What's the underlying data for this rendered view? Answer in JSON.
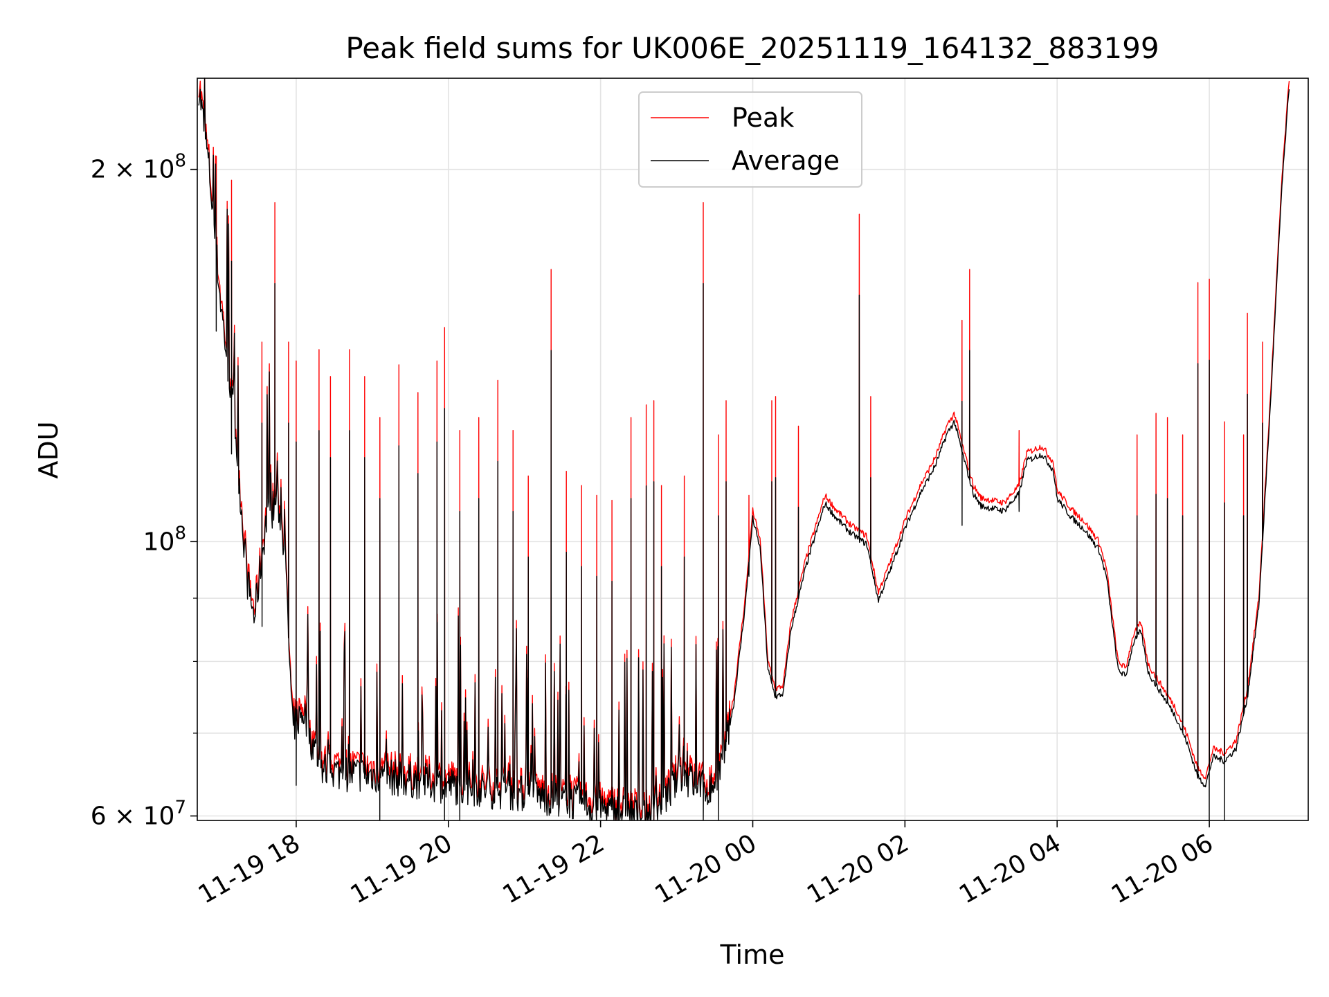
{
  "chart_data": {
    "type": "line",
    "title": "Peak field sums for UK006E_20251119_164132_883199",
    "xlabel": "Time",
    "ylabel": "ADU",
    "yscale": "log",
    "ylim": [
      59500000,
      237000000
    ],
    "xlim_hours": [
      16.7,
      31.3
    ],
    "grid": true,
    "legend_position": "upper center",
    "x_ticks": [
      {
        "hour": 18,
        "label": "11-19 18"
      },
      {
        "hour": 20,
        "label": "11-19 20"
      },
      {
        "hour": 22,
        "label": "11-19 22"
      },
      {
        "hour": 24,
        "label": "11-20 00"
      },
      {
        "hour": 26,
        "label": "11-20 02"
      },
      {
        "hour": 28,
        "label": "11-20 04"
      },
      {
        "hour": 30,
        "label": "11-20 06"
      }
    ],
    "y_major_ticks": [
      {
        "value": 60000000,
        "base": "6 × 10",
        "exp": "7"
      },
      {
        "value": 100000000,
        "base": "10",
        "exp": "8"
      },
      {
        "value": 200000000,
        "base": "2 × 10",
        "exp": "8"
      }
    ],
    "y_minor_ticks": [
      70000000,
      80000000,
      90000000
    ],
    "series": [
      {
        "name": "Peak",
        "color": "#ff0000",
        "baseline": [
          [
            16.72,
            237000000
          ],
          [
            16.85,
            205000000
          ],
          [
            17.0,
            160000000
          ],
          [
            17.2,
            125000000
          ],
          [
            17.35,
            95000000
          ],
          [
            17.45,
            88000000
          ],
          [
            17.6,
            105000000
          ],
          [
            17.75,
            110000000
          ],
          [
            17.85,
            100000000
          ],
          [
            17.95,
            72000000
          ],
          [
            18.1,
            74000000
          ],
          [
            18.2,
            70000000
          ],
          [
            18.35,
            66500000
          ],
          [
            18.6,
            66000000
          ],
          [
            19.0,
            65800000
          ],
          [
            19.5,
            65200000
          ],
          [
            20.0,
            64500000
          ],
          [
            20.5,
            64000000
          ],
          [
            21.0,
            63500000
          ],
          [
            21.5,
            62800000
          ],
          [
            22.0,
            61800000
          ],
          [
            22.4,
            61300000
          ],
          [
            22.6,
            60800000
          ],
          [
            22.9,
            63500000
          ],
          [
            23.05,
            66000000
          ],
          [
            23.25,
            64500000
          ],
          [
            23.45,
            64000000
          ],
          [
            23.6,
            67500000
          ],
          [
            23.75,
            75000000
          ],
          [
            23.9,
            90000000
          ],
          [
            24.0,
            106000000
          ],
          [
            24.1,
            100000000
          ],
          [
            24.2,
            80000000
          ],
          [
            24.3,
            76000000
          ],
          [
            24.4,
            76500000
          ],
          [
            24.5,
            86000000
          ],
          [
            24.7,
            97000000
          ],
          [
            24.95,
            109000000
          ],
          [
            25.1,
            106000000
          ],
          [
            25.3,
            103000000
          ],
          [
            25.5,
            101000000
          ],
          [
            25.65,
            91000000
          ],
          [
            25.8,
            96000000
          ],
          [
            26.0,
            104000000
          ],
          [
            26.2,
            111000000
          ],
          [
            26.4,
            117000000
          ],
          [
            26.55,
            124000000
          ],
          [
            26.65,
            127000000
          ],
          [
            26.75,
            120000000
          ],
          [
            26.9,
            111000000
          ],
          [
            27.0,
            108500000
          ],
          [
            27.3,
            107500000
          ],
          [
            27.5,
            111000000
          ],
          [
            27.6,
            118000000
          ],
          [
            27.8,
            119500000
          ],
          [
            27.95,
            116000000
          ],
          [
            28.0,
            110000000
          ],
          [
            28.2,
            106000000
          ],
          [
            28.35,
            104000000
          ],
          [
            28.55,
            100000000
          ],
          [
            28.65,
            95000000
          ],
          [
            28.8,
            80000000
          ],
          [
            28.9,
            79000000
          ],
          [
            29.0,
            84000000
          ],
          [
            29.1,
            86000000
          ],
          [
            29.2,
            79500000
          ],
          [
            29.4,
            76000000
          ],
          [
            29.55,
            73500000
          ],
          [
            29.7,
            70000000
          ],
          [
            29.85,
            65500000
          ],
          [
            29.95,
            64500000
          ],
          [
            30.05,
            68000000
          ],
          [
            30.2,
            67500000
          ],
          [
            30.35,
            69000000
          ],
          [
            30.5,
            76000000
          ],
          [
            30.65,
            90000000
          ],
          [
            30.8,
            130000000
          ],
          [
            30.95,
            195000000
          ],
          [
            31.05,
            237000000
          ]
        ],
        "spikes": [
          [
            16.95,
            205000000
          ],
          [
            17.15,
            196000000
          ],
          [
            17.55,
            145000000
          ],
          [
            17.72,
            188000000
          ],
          [
            17.9,
            145000000
          ],
          [
            18.0,
            140000000
          ],
          [
            18.3,
            143000000
          ],
          [
            18.45,
            136000000
          ],
          [
            18.7,
            143000000
          ],
          [
            18.9,
            136000000
          ],
          [
            19.1,
            126000000
          ],
          [
            19.35,
            139000000
          ],
          [
            19.6,
            132000000
          ],
          [
            19.85,
            140000000
          ],
          [
            19.95,
            149000000
          ],
          [
            20.15,
            123000000
          ],
          [
            20.4,
            126000000
          ],
          [
            20.65,
            135000000
          ],
          [
            20.85,
            123000000
          ],
          [
            21.05,
            113000000
          ],
          [
            21.35,
            166000000
          ],
          [
            21.55,
            114000000
          ],
          [
            21.75,
            111000000
          ],
          [
            21.95,
            109000000
          ],
          [
            22.15,
            108000000
          ],
          [
            22.4,
            126000000
          ],
          [
            22.6,
            129000000
          ],
          [
            22.7,
            130000000
          ],
          [
            22.8,
            111000000
          ],
          [
            23.1,
            113000000
          ],
          [
            23.35,
            188000000
          ],
          [
            23.55,
            122000000
          ],
          [
            23.65,
            130000000
          ],
          [
            23.95,
            109000000
          ],
          [
            24.25,
            130000000
          ],
          [
            24.3,
            131000000
          ],
          [
            24.6,
            124000000
          ],
          [
            25.4,
            184000000
          ],
          [
            25.55,
            131000000
          ],
          [
            26.75,
            151000000
          ],
          [
            26.85,
            166000000
          ],
          [
            27.5,
            123000000
          ],
          [
            29.05,
            122000000
          ],
          [
            29.3,
            127000000
          ],
          [
            29.45,
            126000000
          ],
          [
            29.65,
            122000000
          ],
          [
            29.85,
            162000000
          ],
          [
            30.0,
            163000000
          ],
          [
            30.2,
            125000000
          ],
          [
            30.45,
            122000000
          ],
          [
            30.5,
            153000000
          ],
          [
            30.7,
            145000000
          ]
        ]
      },
      {
        "name": "Average",
        "color": "#000000",
        "offset_ratio": 0.985
      }
    ]
  }
}
